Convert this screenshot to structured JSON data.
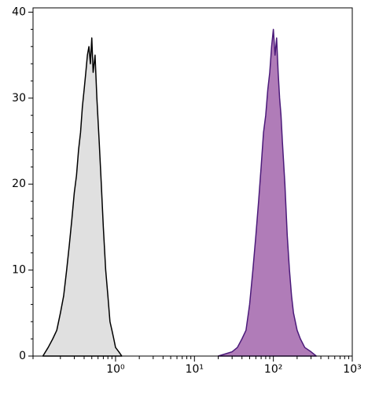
{
  "chart_data": {
    "type": "histogram",
    "xscale": "log",
    "xlim": [
      0.09,
      1000
    ],
    "ylim": [
      0,
      40.5
    ],
    "xticks": [
      {
        "value": 1,
        "label": "10⁰"
      },
      {
        "value": 10,
        "label": "10¹"
      },
      {
        "value": 100,
        "label": "10²"
      },
      {
        "value": 1000,
        "label": "10³"
      }
    ],
    "yticks": [
      0,
      10,
      20,
      30,
      40
    ],
    "series": [
      {
        "color": "#000000",
        "fill": "#e0e0e0",
        "x": [
          0.12,
          0.14,
          0.16,
          0.18,
          0.2,
          0.22,
          0.24,
          0.26,
          0.28,
          0.3,
          0.32,
          0.34,
          0.36,
          0.38,
          0.4,
          0.42,
          0.44,
          0.46,
          0.48,
          0.5,
          0.52,
          0.55,
          0.58,
          0.62,
          0.66,
          0.7,
          0.75,
          0.8,
          0.85,
          0.9,
          0.95,
          1.0,
          1.1,
          1.2
        ],
        "values": [
          0,
          1,
          2,
          3,
          5,
          7,
          10,
          13,
          16,
          19,
          21,
          24,
          26,
          29,
          31,
          33,
          35,
          36,
          34,
          37,
          33,
          35,
          30,
          25,
          20,
          15,
          10,
          7,
          4,
          3,
          2,
          1,
          0.5,
          0
        ]
      },
      {
        "color": "#4b1a7a",
        "fill": "#b07cb8",
        "x": [
          20,
          30,
          35,
          40,
          45,
          50,
          55,
          60,
          65,
          70,
          75,
          80,
          85,
          90,
          95,
          100,
          105,
          110,
          115,
          120,
          125,
          130,
          140,
          150,
          160,
          170,
          180,
          200,
          220,
          250,
          300,
          350
        ],
        "values": [
          0,
          0.5,
          1,
          2,
          3,
          6,
          10,
          14,
          18,
          22,
          26,
          28,
          31,
          33,
          36,
          38,
          35,
          37,
          33,
          30,
          28,
          25,
          20,
          14,
          10,
          7,
          5,
          3,
          2,
          1,
          0.5,
          0
        ]
      }
    ]
  }
}
